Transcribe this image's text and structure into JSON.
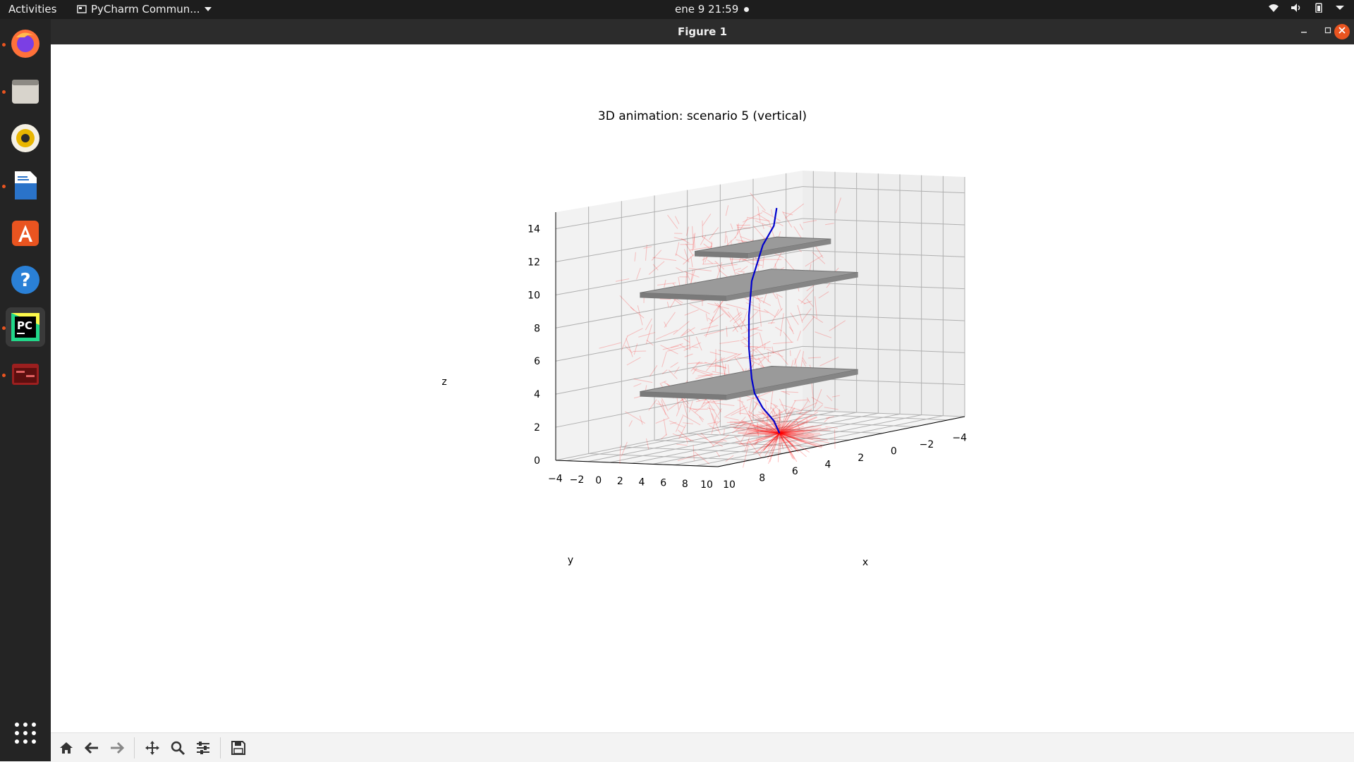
{
  "topbar": {
    "activities": "Activities",
    "app_menu": "PyCharm Commun...",
    "clock": "ene 9  21:59"
  },
  "dock": {
    "items": [
      "firefox-icon",
      "files-icon",
      "rhythmbox-icon",
      "writer-icon",
      "software-center-icon",
      "help-icon",
      "pycharm-icon",
      "terminal-app-icon"
    ],
    "show_apps": "apps-grid-icon"
  },
  "window": {
    "title": "Figure 1"
  },
  "toolbar": {
    "buttons": [
      "home-icon",
      "back-icon",
      "forward-icon",
      "pan-icon",
      "zoom-icon",
      "configure-icon",
      "save-icon"
    ]
  },
  "chart_data": {
    "type": "3d-line",
    "title": "3D animation: scenario 5 (vertical)",
    "xlabel": "x",
    "ylabel": "y",
    "zlabel": "z",
    "x_ticks": [
      "10",
      "8",
      "6",
      "4",
      "2",
      "0",
      "−2",
      "−4"
    ],
    "y_ticks": [
      "−4",
      "−2",
      "0",
      "2",
      "4",
      "6",
      "8",
      "10"
    ],
    "z_ticks": [
      "0",
      "2",
      "4",
      "6",
      "8",
      "10",
      "12",
      "14"
    ],
    "xlim": [
      -5,
      10
    ],
    "ylim": [
      -5,
      10
    ],
    "zlim": [
      0,
      15
    ],
    "series": [
      {
        "color": "#0000cc",
        "points": [
          [
            1,
            2,
            0
          ],
          [
            2,
            3,
            1
          ],
          [
            3,
            3.5,
            2
          ],
          [
            3.5,
            3.5,
            3
          ],
          [
            4,
            4,
            4
          ],
          [
            4.5,
            4.5,
            6
          ],
          [
            4.5,
            4.5,
            8
          ],
          [
            4,
            4,
            10
          ],
          [
            3,
            3.5,
            12
          ],
          [
            2,
            3,
            13
          ],
          [
            1.5,
            2.5,
            14
          ]
        ]
      }
    ],
    "obstacles": [
      {
        "z": 4
      },
      {
        "z": 10
      },
      {
        "z": 12
      }
    ],
    "grid": true,
    "accent_color": "#ff0000"
  }
}
